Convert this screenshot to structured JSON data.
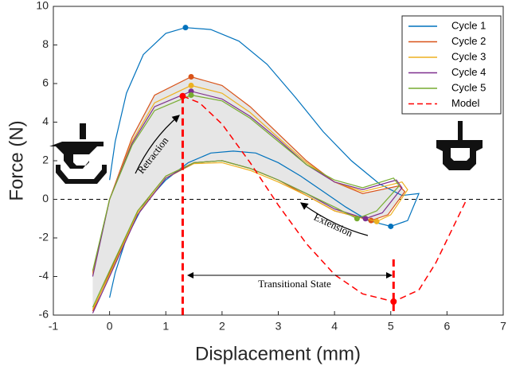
{
  "chart_data": {
    "type": "line",
    "xlabel": "Displacement (mm)",
    "ylabel": "Force (N)",
    "xlim": [
      -1,
      7
    ],
    "xticks": [
      -1,
      0,
      1,
      2,
      3,
      4,
      5,
      6,
      7
    ],
    "ylim": [
      -6,
      10
    ],
    "yticks": [
      -6,
      -4,
      -2,
      0,
      2,
      4,
      6,
      8,
      10
    ],
    "grid": false,
    "legend": "upper right",
    "annotations": {
      "retraction": "Retraction",
      "extension": "Extension",
      "transition": "Transitional State"
    },
    "series": [
      {
        "name": "Cycle 1",
        "color": "#0072bd",
        "dashed": false,
        "x": [
          0,
          0.1,
          0.3,
          0.6,
          1,
          1.35,
          1.8,
          2.3,
          2.8,
          3.3,
          3.8,
          4.3,
          4.8,
          5.2,
          5.5,
          5.3,
          5,
          4.6,
          4.2,
          3.8,
          3.4,
          3,
          2.6,
          2.2,
          1.8,
          1.4,
          1,
          0.6,
          0.3,
          0.1,
          0
        ],
        "values": [
          1,
          3,
          5.5,
          7.5,
          8.6,
          8.9,
          8.8,
          8.2,
          7,
          5.3,
          3.5,
          2,
          0.8,
          0.2,
          0.3,
          -1.1,
          -1.4,
          -1.1,
          -0.4,
          0.4,
          1.2,
          1.9,
          2.4,
          2.5,
          2.4,
          1.9,
          1,
          -0.3,
          -2,
          -3.8,
          -5.1
        ],
        "marker_x": [
          1.35,
          5
        ],
        "marker_values": [
          8.9,
          -1.4
        ]
      },
      {
        "name": "Cycle 2",
        "color": "#d95319",
        "dashed": false,
        "x": [
          -0.3,
          0,
          0.4,
          0.8,
          1.45,
          2,
          2.5,
          3,
          3.5,
          4,
          4.5,
          5.15,
          5.25,
          4.95,
          4.65,
          4,
          3.5,
          3,
          2.5,
          2,
          1.5,
          1,
          0.5,
          0,
          -0.3
        ],
        "values": [
          -3.8,
          0,
          3.2,
          5.4,
          6.35,
          5.9,
          4.8,
          3.4,
          2,
          0.9,
          0.3,
          0.7,
          0.4,
          -0.8,
          -1.1,
          -0.6,
          0.2,
          1,
          1.6,
          2,
          1.9,
          1.2,
          -0.6,
          -3.8,
          -5.8
        ],
        "marker_x": [
          1.45,
          4.65
        ],
        "marker_values": [
          6.35,
          -1.1
        ]
      },
      {
        "name": "Cycle 3",
        "color": "#edb120",
        "dashed": false,
        "x": [
          -0.3,
          0,
          0.4,
          0.8,
          1.45,
          2,
          2.5,
          3,
          3.5,
          4,
          4.5,
          5.2,
          5.3,
          5.0,
          4.75,
          4,
          3.5,
          3,
          2.5,
          2,
          1.5,
          1,
          0.5,
          0,
          -0.3
        ],
        "values": [
          -3.9,
          0,
          3,
          5,
          5.9,
          5.5,
          4.5,
          3.2,
          1.9,
          0.9,
          0.4,
          0.9,
          0.5,
          -0.8,
          -1.15,
          -0.6,
          0.2,
          0.9,
          1.5,
          1.9,
          1.85,
          1.1,
          -0.7,
          -3.9,
          -5.7
        ],
        "marker_x": [
          1.45,
          4.75
        ],
        "marker_values": [
          5.9,
          -1.15
        ]
      },
      {
        "name": "Cycle 4",
        "color": "#7e2f8e",
        "dashed": false,
        "x": [
          -0.3,
          0,
          0.4,
          0.8,
          1.45,
          2,
          2.5,
          3,
          3.5,
          4,
          4.5,
          5.1,
          5.2,
          4.85,
          4.55,
          4,
          3.5,
          3,
          2.5,
          2,
          1.5,
          1,
          0.5,
          0,
          -0.3
        ],
        "values": [
          -4,
          0,
          2.9,
          4.8,
          5.6,
          5.2,
          4.3,
          3.1,
          1.8,
          0.9,
          0.5,
          1,
          0.6,
          -0.7,
          -1,
          -0.5,
          0.3,
          1,
          1.6,
          2,
          1.9,
          1.1,
          -0.8,
          -4,
          -5.9
        ],
        "marker_x": [
          1.45,
          4.55
        ],
        "marker_values": [
          5.6,
          -1
        ]
      },
      {
        "name": "Cycle 5",
        "color": "#77ac30",
        "dashed": false,
        "x": [
          -0.3,
          0,
          0.4,
          0.8,
          1.45,
          2,
          2.5,
          3,
          3.5,
          4,
          4.5,
          5.05,
          5.15,
          4.75,
          4.4,
          4,
          3.5,
          3,
          2.5,
          2,
          1.5,
          1,
          0.5,
          0,
          -0.3
        ],
        "values": [
          -3.7,
          0,
          2.8,
          4.6,
          5.4,
          5.1,
          4.2,
          3,
          1.8,
          1,
          0.6,
          1.1,
          0.7,
          -0.6,
          -1,
          -0.4,
          0.3,
          1,
          1.6,
          2,
          1.9,
          1.2,
          -0.6,
          -3.7,
          -5.6
        ],
        "marker_x": [
          1.45,
          4.4
        ],
        "marker_values": [
          5.4,
          -1
        ]
      },
      {
        "name": "Model",
        "color": "#ff0000",
        "dashed": true,
        "x": [
          1.3,
          1.6,
          2,
          2.5,
          3,
          3.5,
          4,
          4.5,
          5.05,
          5.5,
          5.8,
          6.1,
          6.35
        ],
        "values": [
          5.35,
          5,
          3.9,
          1.9,
          -0.3,
          -2.3,
          -3.9,
          -4.9,
          -5.3,
          -4.7,
          -3.3,
          -1.5,
          0
        ],
        "marker_x": [
          1.3,
          5.05
        ],
        "marker_values": [
          5.35,
          -5.3
        ]
      }
    ]
  }
}
